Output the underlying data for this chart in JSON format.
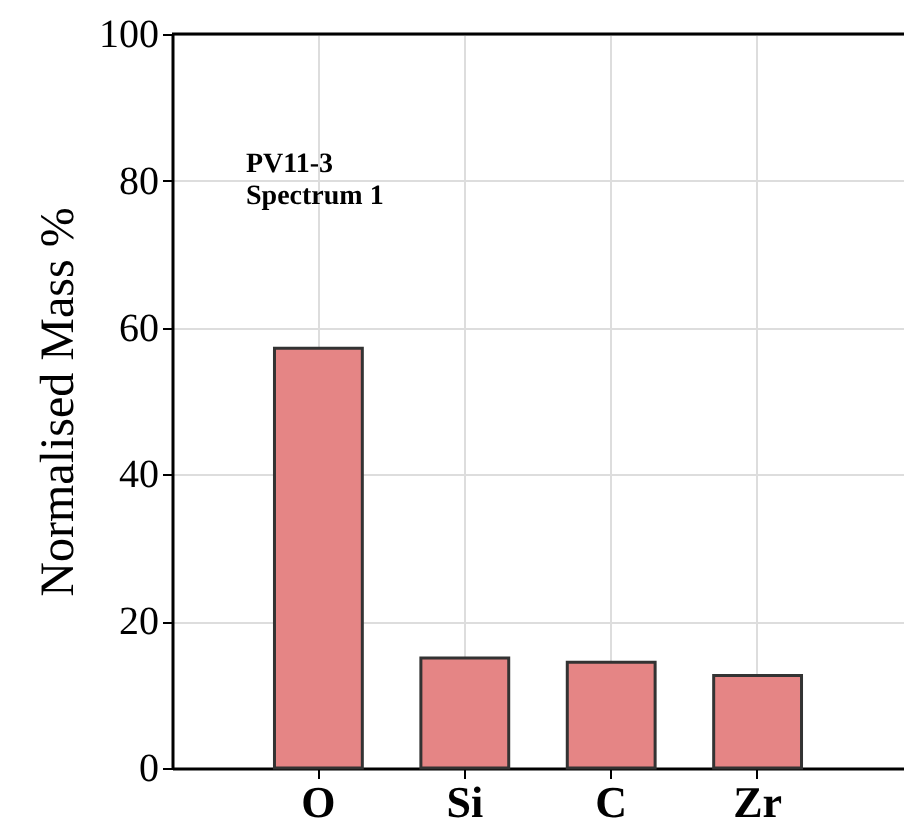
{
  "chart_data": {
    "type": "bar",
    "ylabel": "Normalised Mass %",
    "categories": [
      "O",
      "Si",
      "C",
      "Zr"
    ],
    "values": [
      57.2,
      15.0,
      14.4,
      12.6
    ],
    "color": "#e58585",
    "ylim": [
      0,
      100
    ],
    "yticks": [
      0,
      20,
      40,
      60,
      80,
      100
    ],
    "grid": true,
    "annotations": [
      "PV11-3",
      "Spectrum 1"
    ]
  }
}
